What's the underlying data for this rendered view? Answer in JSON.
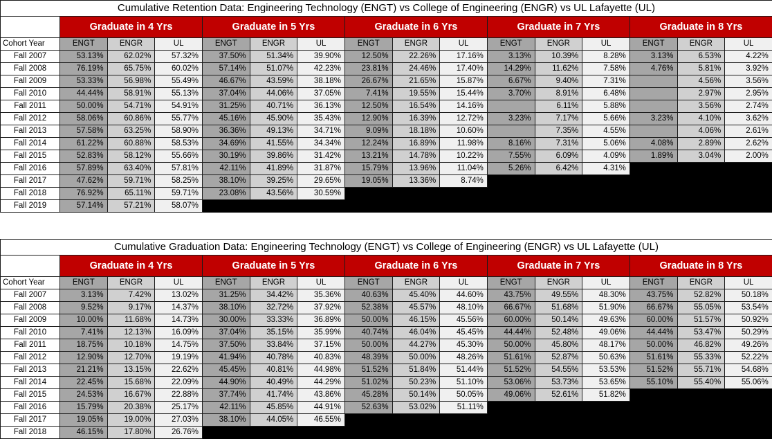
{
  "retention": {
    "title": "Cumulative Retention Data: Engineering Technology (ENGT) vs College of Engineering (ENGR) vs UL Lafayette (UL)",
    "groups": [
      "Graduate in 4 Yrs",
      "Graduate in 5 Yrs",
      "Graduate in 6 Yrs",
      "Graduate in 7 Yrs",
      "Graduate in 8 Yrs"
    ],
    "subheaders": [
      "ENGT",
      "ENGR",
      "UL"
    ],
    "rowheader": "Cohort Year",
    "rows": [
      {
        "year": "Fall 2007",
        "values": [
          "53.13%",
          "62.02%",
          "57.32%",
          "37.50%",
          "51.34%",
          "39.90%",
          "12.50%",
          "22.26%",
          "17.16%",
          "3.13%",
          "10.39%",
          "8.28%",
          "3.13%",
          "6.53%",
          "4.22%"
        ]
      },
      {
        "year": "Fall 2008",
        "values": [
          "76.19%",
          "65.75%",
          "60.02%",
          "57.14%",
          "51.07%",
          "42.23%",
          "23.81%",
          "24.46%",
          "17.40%",
          "14.29%",
          "11.62%",
          "7.58%",
          "4.76%",
          "5.81%",
          "3.92%"
        ]
      },
      {
        "year": "Fall 2009",
        "values": [
          "53.33%",
          "56.98%",
          "55.49%",
          "46.67%",
          "43.59%",
          "38.18%",
          "26.67%",
          "21.65%",
          "15.87%",
          "6.67%",
          "9.40%",
          "7.31%",
          "",
          "4.56%",
          "3.56%"
        ]
      },
      {
        "year": "Fall 2010",
        "values": [
          "44.44%",
          "58.91%",
          "55.13%",
          "37.04%",
          "44.06%",
          "37.05%",
          "7.41%",
          "19.55%",
          "15.44%",
          "3.70%",
          "8.91%",
          "6.48%",
          "",
          "2.97%",
          "2.95%"
        ]
      },
      {
        "year": "Fall 2011",
        "values": [
          "50.00%",
          "54.71%",
          "54.91%",
          "31.25%",
          "40.71%",
          "36.13%",
          "12.50%",
          "16.54%",
          "14.16%",
          "",
          "6.11%",
          "5.88%",
          "",
          "3.56%",
          "2.74%"
        ]
      },
      {
        "year": "Fall 2012",
        "values": [
          "58.06%",
          "60.86%",
          "55.77%",
          "45.16%",
          "45.90%",
          "35.43%",
          "12.90%",
          "16.39%",
          "12.72%",
          "3.23%",
          "7.17%",
          "5.66%",
          "3.23%",
          "4.10%",
          "3.62%"
        ]
      },
      {
        "year": "Fall 2013",
        "values": [
          "57.58%",
          "63.25%",
          "58.90%",
          "36.36%",
          "49.13%",
          "34.71%",
          "9.09%",
          "18.18%",
          "10.60%",
          "",
          "7.35%",
          "4.55%",
          "",
          "4.06%",
          "2.61%"
        ]
      },
      {
        "year": "Fall 2014",
        "values": [
          "61.22%",
          "60.88%",
          "58.53%",
          "34.69%",
          "41.55%",
          "34.34%",
          "12.24%",
          "16.89%",
          "11.98%",
          "8.16%",
          "7.31%",
          "5.06%",
          "4.08%",
          "2.89%",
          "2.62%"
        ]
      },
      {
        "year": "Fall 2015",
        "values": [
          "52.83%",
          "58.12%",
          "55.66%",
          "30.19%",
          "39.86%",
          "31.42%",
          "13.21%",
          "14.78%",
          "10.22%",
          "7.55%",
          "6.09%",
          "4.09%",
          "1.89%",
          "3.04%",
          "2.00%"
        ]
      },
      {
        "year": "Fall 2016",
        "values": [
          "57.89%",
          "63.40%",
          "57.81%",
          "42.11%",
          "41.89%",
          "31.87%",
          "15.79%",
          "13.96%",
          "11.04%",
          "5.26%",
          "6.42%",
          "4.31%"
        ]
      },
      {
        "year": "Fall 2017",
        "values": [
          "47.62%",
          "59.71%",
          "58.25%",
          "38.10%",
          "39.25%",
          "29.65%",
          "19.05%",
          "13.36%",
          "8.74%"
        ]
      },
      {
        "year": "Fall 2018",
        "values": [
          "76.92%",
          "65.11%",
          "59.71%",
          "23.08%",
          "43.56%",
          "30.59%"
        ]
      },
      {
        "year": "Fall 2019",
        "values": [
          "57.14%",
          "57.21%",
          "58.07%"
        ]
      }
    ]
  },
  "graduation": {
    "title": "Cumulative Graduation Data: Engineering Technology (ENGT) vs College of Engineering (ENGR) vs UL Lafayette (UL)",
    "groups": [
      "Graduate in 4 Yrs",
      "Graduate in 5 Yrs",
      "Graduate in 6 Yrs",
      "Graduate in 7 Yrs",
      "Graduate in 8 Yrs"
    ],
    "subheaders": [
      "ENGT",
      "ENGR",
      "UL"
    ],
    "rowheader": "Cohort Year",
    "rows": [
      {
        "year": "Fall 2007",
        "values": [
          "3.13%",
          "7.42%",
          "13.02%",
          "31.25%",
          "34.42%",
          "35.36%",
          "40.63%",
          "45.40%",
          "44.60%",
          "43.75%",
          "49.55%",
          "48.30%",
          "43.75%",
          "52.82%",
          "50.18%"
        ]
      },
      {
        "year": "Fall 2008",
        "values": [
          "9.52%",
          "9.17%",
          "14.37%",
          "38.10%",
          "32.72%",
          "37.92%",
          "52.38%",
          "45.57%",
          "48.10%",
          "66.67%",
          "51.68%",
          "51.90%",
          "66.67%",
          "55.05%",
          "53.54%"
        ]
      },
      {
        "year": "Fall 2009",
        "values": [
          "10.00%",
          "11.68%",
          "14.73%",
          "30.00%",
          "33.33%",
          "36.89%",
          "50.00%",
          "46.15%",
          "45.56%",
          "60.00%",
          "50.14%",
          "49.63%",
          "60.00%",
          "51.57%",
          "50.92%"
        ]
      },
      {
        "year": "Fall 2010",
        "values": [
          "7.41%",
          "12.13%",
          "16.09%",
          "37.04%",
          "35.15%",
          "35.99%",
          "40.74%",
          "46.04%",
          "45.45%",
          "44.44%",
          "52.48%",
          "49.06%",
          "44.44%",
          "53.47%",
          "50.29%"
        ]
      },
      {
        "year": "Fall 2011",
        "values": [
          "18.75%",
          "10.18%",
          "14.75%",
          "37.50%",
          "33.84%",
          "37.15%",
          "50.00%",
          "44.27%",
          "45.30%",
          "50.00%",
          "45.80%",
          "48.17%",
          "50.00%",
          "46.82%",
          "49.26%"
        ]
      },
      {
        "year": "Fall 2012",
        "values": [
          "12.90%",
          "12.70%",
          "19.19%",
          "41.94%",
          "40.78%",
          "40.83%",
          "48.39%",
          "50.00%",
          "48.26%",
          "51.61%",
          "52.87%",
          "50.63%",
          "51.61%",
          "55.33%",
          "52.22%"
        ]
      },
      {
        "year": "Fall 2013",
        "values": [
          "21.21%",
          "13.15%",
          "22.62%",
          "45.45%",
          "40.81%",
          "44.98%",
          "51.52%",
          "51.84%",
          "51.44%",
          "51.52%",
          "54.55%",
          "53.53%",
          "51.52%",
          "55.71%",
          "54.68%"
        ]
      },
      {
        "year": "Fall 2014",
        "values": [
          "22.45%",
          "15.68%",
          "22.09%",
          "44.90%",
          "40.49%",
          "44.29%",
          "51.02%",
          "50.23%",
          "51.10%",
          "53.06%",
          "53.73%",
          "53.65%",
          "55.10%",
          "55.40%",
          "55.06%"
        ]
      },
      {
        "year": "Fall 2015",
        "values": [
          "24.53%",
          "16.67%",
          "22.88%",
          "37.74%",
          "41.74%",
          "43.86%",
          "45.28%",
          "50.14%",
          "50.05%",
          "49.06%",
          "52.61%",
          "51.82%"
        ]
      },
      {
        "year": "Fall 2016",
        "values": [
          "15.79%",
          "20.38%",
          "25.17%",
          "42.11%",
          "45.85%",
          "44.91%",
          "52.63%",
          "53.02%",
          "51.11%"
        ]
      },
      {
        "year": "Fall 2017",
        "values": [
          "19.05%",
          "19.00%",
          "27.03%",
          "38.10%",
          "44.05%",
          "46.55%"
        ]
      },
      {
        "year": "Fall 2018",
        "values": [
          "46.15%",
          "17.80%",
          "26.76%"
        ]
      }
    ]
  }
}
